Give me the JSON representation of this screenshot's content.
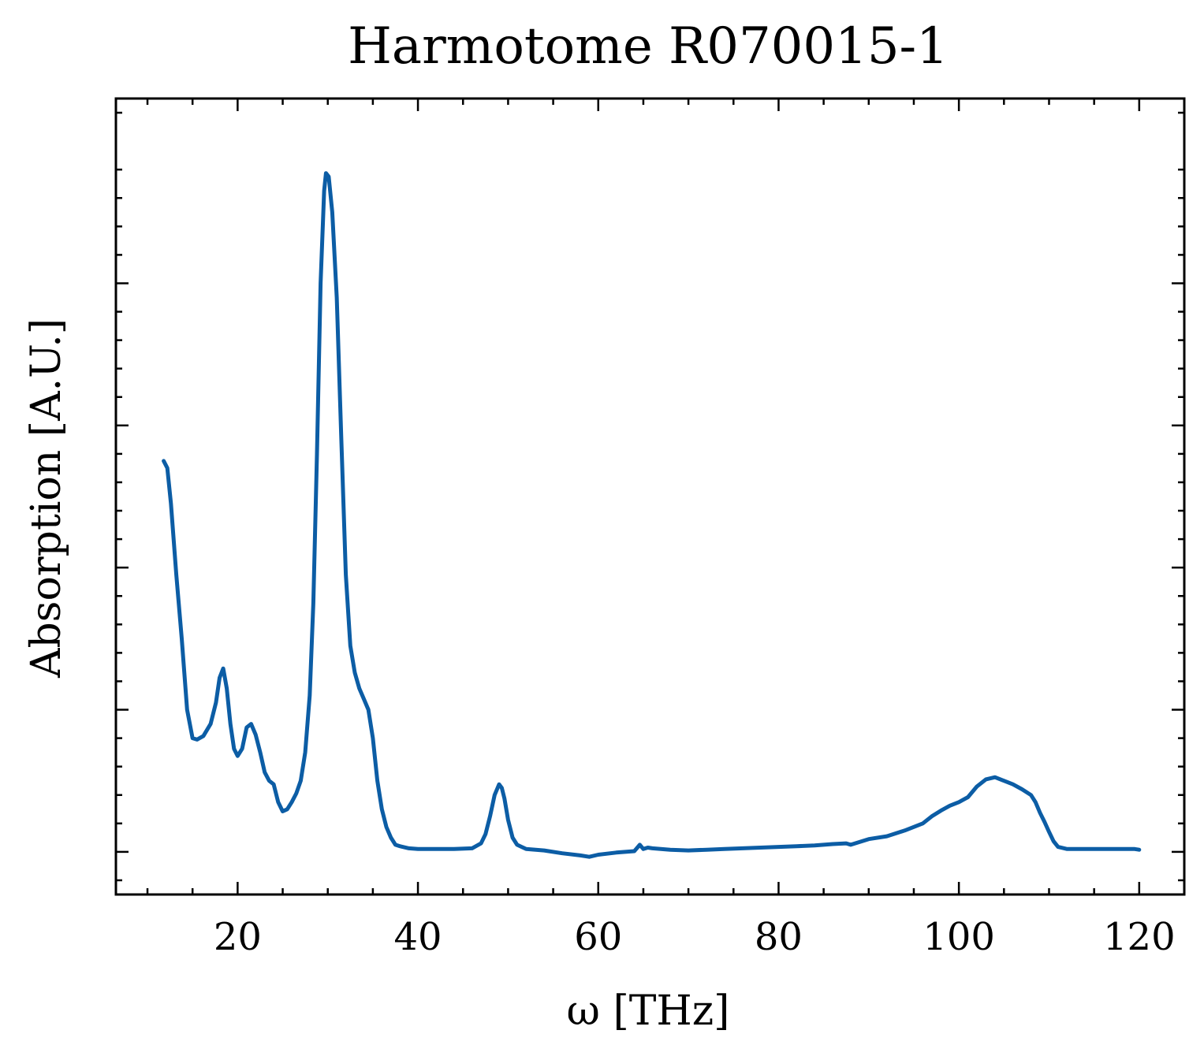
{
  "chart_data": {
    "type": "line",
    "title": "Harmotome R070015-1",
    "xlabel": "ω [THz]",
    "ylabel": "Absorption [A.U.]",
    "xlim": [
      6.5,
      125
    ],
    "ylim": [
      -0.06,
      1.06
    ],
    "xticks": [
      20,
      40,
      60,
      80,
      100,
      120
    ],
    "yticks": [
      0.0,
      0.2,
      0.4,
      0.6,
      0.8
    ],
    "y_tick_labels_shown": false,
    "grid": false,
    "line_color": "#0c5da5",
    "series": [
      {
        "x": [
          11.8,
          12.2,
          12.6,
          13.2,
          13.8,
          14.4,
          15.0,
          15.5,
          16.2,
          17.0,
          17.6,
          18.0,
          18.4,
          18.8,
          19.2,
          19.6,
          20.0,
          20.5,
          21.0,
          21.5,
          22.0,
          22.5,
          23.0,
          23.5,
          24.0,
          24.5,
          25.0,
          25.5,
          26.0,
          26.5,
          27.0,
          27.5,
          28.0,
          28.4,
          28.8,
          29.2,
          29.6,
          29.8,
          30.1,
          30.5,
          31.0,
          31.5,
          32.0,
          32.5,
          33.0,
          33.5,
          34.0,
          34.5,
          35.0,
          35.5,
          36.0,
          36.5,
          37.0,
          37.5,
          38.0,
          39.0,
          40.0,
          42.0,
          44.0,
          46.0,
          47.0,
          47.5,
          48.0,
          48.5,
          49.0,
          49.3,
          49.6,
          50.0,
          50.5,
          51.0,
          51.5,
          52.0,
          54.0,
          56.0,
          58.0,
          59.0,
          60.0,
          62.0,
          64.0,
          64.6,
          65.0,
          65.5,
          66.0,
          68.0,
          70.0,
          72.0,
          74.0,
          76.0,
          78.0,
          80.0,
          82.0,
          84.0,
          86.0,
          87.5,
          88.0,
          90.0,
          92.0,
          94.0,
          96.0,
          97.0,
          98.0,
          99.0,
          100.0,
          101.0,
          102.0,
          103.0,
          104.0,
          105.0,
          106.0,
          107.0,
          108.0,
          108.5,
          109.0,
          109.5,
          110.0,
          110.5,
          111.0,
          112.0,
          114.0,
          116.0,
          118.0,
          119.5,
          120.0
        ],
        "y": [
          0.55,
          0.54,
          0.49,
          0.39,
          0.3,
          0.2,
          0.16,
          0.158,
          0.163,
          0.18,
          0.21,
          0.245,
          0.258,
          0.23,
          0.18,
          0.145,
          0.135,
          0.145,
          0.175,
          0.18,
          0.165,
          0.14,
          0.112,
          0.1,
          0.095,
          0.07,
          0.057,
          0.06,
          0.07,
          0.082,
          0.1,
          0.14,
          0.22,
          0.35,
          0.56,
          0.8,
          0.93,
          0.955,
          0.95,
          0.9,
          0.78,
          0.58,
          0.39,
          0.29,
          0.252,
          0.23,
          0.215,
          0.2,
          0.16,
          0.1,
          0.06,
          0.035,
          0.02,
          0.01,
          0.008,
          0.005,
          0.004,
          0.004,
          0.004,
          0.005,
          0.012,
          0.025,
          0.05,
          0.08,
          0.095,
          0.09,
          0.075,
          0.045,
          0.02,
          0.01,
          0.007,
          0.004,
          0.002,
          -0.002,
          -0.005,
          -0.007,
          -0.004,
          -0.001,
          0.001,
          0.01,
          0.004,
          0.006,
          0.005,
          0.003,
          0.002,
          0.003,
          0.004,
          0.005,
          0.006,
          0.007,
          0.008,
          0.009,
          0.011,
          0.012,
          0.01,
          0.018,
          0.022,
          0.03,
          0.04,
          0.05,
          0.058,
          0.065,
          0.07,
          0.077,
          0.092,
          0.102,
          0.105,
          0.1,
          0.095,
          0.088,
          0.08,
          0.07,
          0.055,
          0.042,
          0.028,
          0.015,
          0.007,
          0.004,
          0.004,
          0.004,
          0.004,
          0.004,
          0.003
        ]
      }
    ]
  }
}
